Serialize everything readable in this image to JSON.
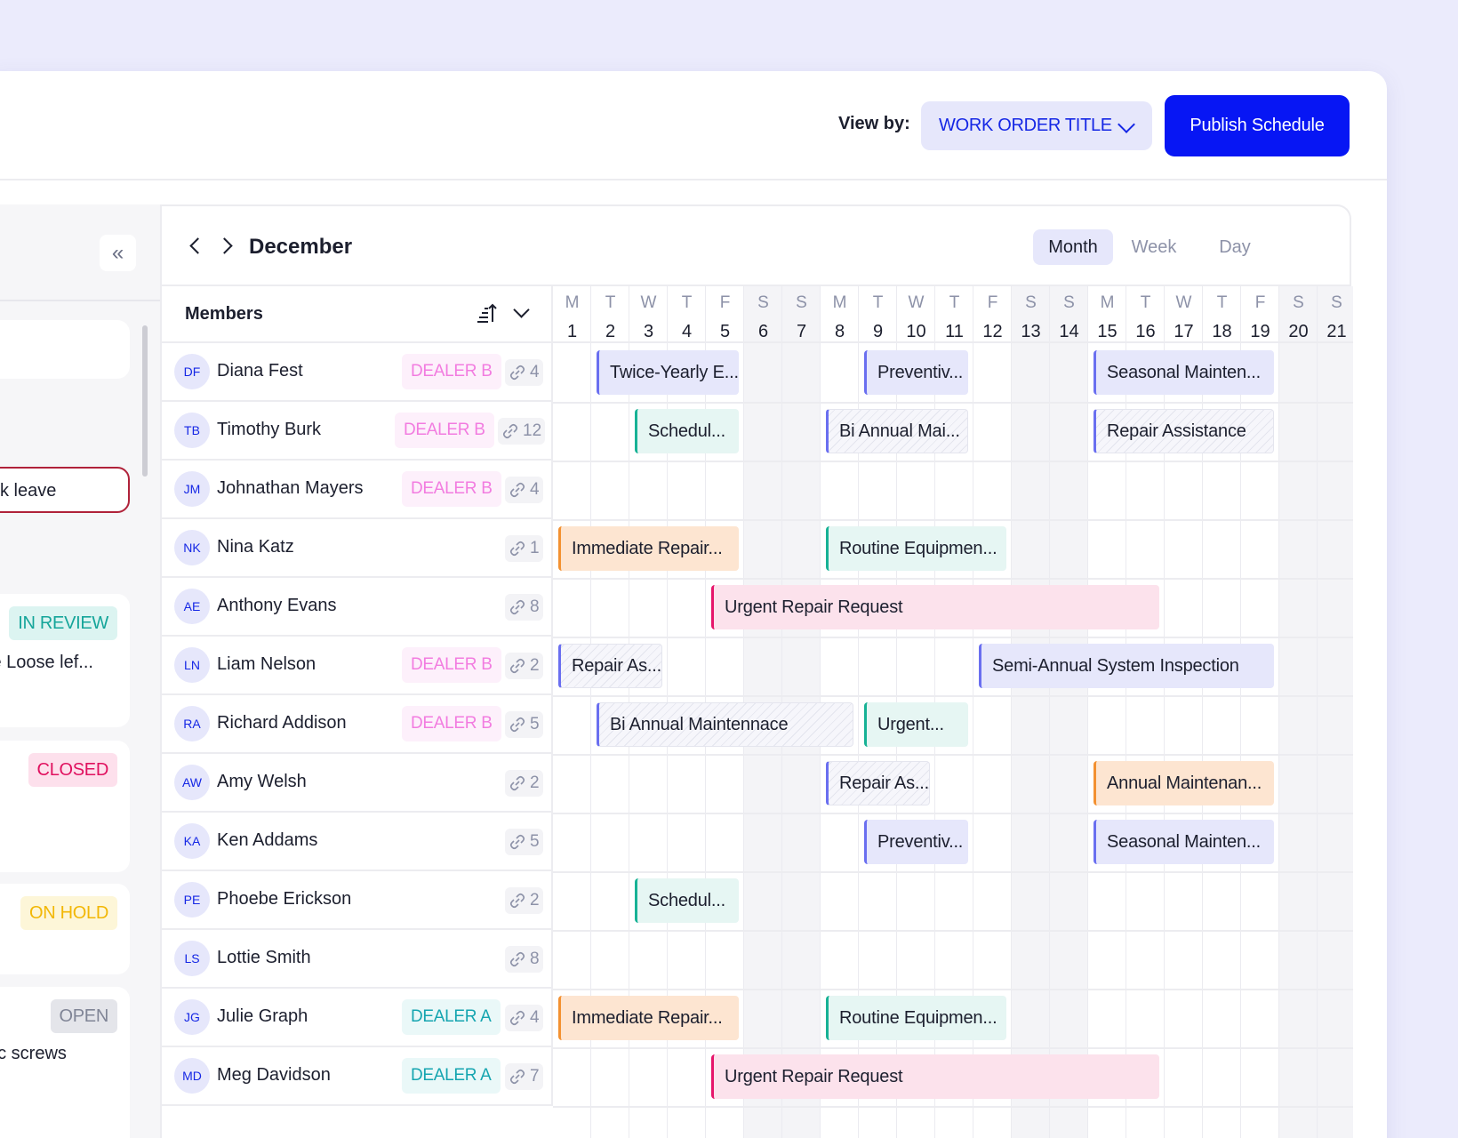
{
  "topbar": {
    "viewby_label": "View by:",
    "viewby_value": "WORK ORDER TITLE",
    "publish_label": "Publish Schedule"
  },
  "left_panel": {
    "collapse_icon": "chevrons-left-icon",
    "input_text": "ck leave",
    "cards": [
      {
        "status": "IN REVIEW",
        "text": "ice Loose lef...",
        "color": "#15a59a"
      },
      {
        "status": "CLOSED",
        "text": "",
        "color": "#e0115f"
      },
      {
        "status": "ON HOLD",
        "text": "",
        "color": "#f2b705"
      },
      {
        "status": "OPEN",
        "text": "atic screws",
        "color": "#808596"
      }
    ]
  },
  "calendar": {
    "month": "December",
    "views": [
      "Month",
      "Week",
      "Day"
    ],
    "active_view": "Month",
    "members_label": "Members",
    "days": [
      {
        "l": "M",
        "n": "1"
      },
      {
        "l": "T",
        "n": "2"
      },
      {
        "l": "W",
        "n": "3"
      },
      {
        "l": "T",
        "n": "4"
      },
      {
        "l": "F",
        "n": "5"
      },
      {
        "l": "S",
        "n": "6"
      },
      {
        "l": "S",
        "n": "7"
      },
      {
        "l": "M",
        "n": "8"
      },
      {
        "l": "T",
        "n": "9"
      },
      {
        "l": "W",
        "n": "10"
      },
      {
        "l": "T",
        "n": "11"
      },
      {
        "l": "F",
        "n": "12"
      },
      {
        "l": "S",
        "n": "13"
      },
      {
        "l": "S",
        "n": "14"
      },
      {
        "l": "M",
        "n": "15"
      },
      {
        "l": "T",
        "n": "16"
      },
      {
        "l": "W",
        "n": "17"
      },
      {
        "l": "T",
        "n": "18"
      },
      {
        "l": "F",
        "n": "19"
      },
      {
        "l": "S",
        "n": "20"
      },
      {
        "l": "S",
        "n": "21"
      }
    ]
  },
  "members": [
    {
      "initials": "DF",
      "name": "Diana Fest",
      "dealer": "DEALER B",
      "count": "4"
    },
    {
      "initials": "TB",
      "name": "Timothy Burk",
      "dealer": "DEALER B",
      "count": "12"
    },
    {
      "initials": "JM",
      "name": "Johnathan Mayers",
      "dealer": "DEALER B",
      "count": "4"
    },
    {
      "initials": "NK",
      "name": "Nina Katz",
      "dealer": "",
      "count": "1"
    },
    {
      "initials": "AE",
      "name": "Anthony Evans",
      "dealer": "",
      "count": "8"
    },
    {
      "initials": "LN",
      "name": "Liam Nelson",
      "dealer": "DEALER B",
      "count": "2"
    },
    {
      "initials": "RA",
      "name": "Richard Addison",
      "dealer": "DEALER B",
      "count": "5"
    },
    {
      "initials": "AW",
      "name": "Amy Welsh",
      "dealer": "",
      "count": "2"
    },
    {
      "initials": "KA",
      "name": "Ken Addams",
      "dealer": "",
      "count": "5"
    },
    {
      "initials": "PE",
      "name": "Phoebe Erickson",
      "dealer": "",
      "count": "2"
    },
    {
      "initials": "LS",
      "name": "Lottie Smith",
      "dealer": "",
      "count": "8"
    },
    {
      "initials": "JG",
      "name": "Julie Graph",
      "dealer": "DEALER A",
      "count": "4"
    },
    {
      "initials": "MD",
      "name": "Meg Davidson",
      "dealer": "DEALER A",
      "count": "7"
    }
  ],
  "events": [
    {
      "row": 0,
      "start": 2,
      "end": 5,
      "title": "Twice-Yearly E...",
      "style": "lav"
    },
    {
      "row": 0,
      "start": 9,
      "end": 11,
      "title": "Preventiv...",
      "style": "lav"
    },
    {
      "row": 0,
      "start": 15,
      "end": 19,
      "title": "Seasonal Mainten...",
      "style": "lav"
    },
    {
      "row": 1,
      "start": 3,
      "end": 5,
      "title": "Schedul...",
      "style": "teal"
    },
    {
      "row": 1,
      "start": 8,
      "end": 11,
      "title": "Bi Annual Mai...",
      "style": "hatch"
    },
    {
      "row": 1,
      "start": 15,
      "end": 19,
      "title": "Repair Assistance",
      "style": "hatch"
    },
    {
      "row": 3,
      "start": 1,
      "end": 5,
      "title": "Immediate Repair...",
      "style": "orange"
    },
    {
      "row": 3,
      "start": 8,
      "end": 12,
      "title": "Routine Equipmen...",
      "style": "teal"
    },
    {
      "row": 4,
      "start": 5,
      "end": 16,
      "title": "Urgent Repair Request",
      "style": "pink"
    },
    {
      "row": 5,
      "start": 1,
      "end": 3,
      "title": "Repair As...",
      "style": "hatch"
    },
    {
      "row": 5,
      "start": 12,
      "end": 19,
      "title": "Semi-Annual System Inspection",
      "style": "lav"
    },
    {
      "row": 6,
      "start": 2,
      "end": 8,
      "title": "Bi Annual Maintennace",
      "style": "hatch"
    },
    {
      "row": 6,
      "start": 9,
      "end": 11,
      "title": "Urgent...",
      "style": "teal"
    },
    {
      "row": 7,
      "start": 8,
      "end": 10,
      "title": "Repair As...",
      "style": "hatch"
    },
    {
      "row": 7,
      "start": 15,
      "end": 19,
      "title": "Annual Maintenan...",
      "style": "orange"
    },
    {
      "row": 8,
      "start": 9,
      "end": 11,
      "title": "Preventiv...",
      "style": "lav"
    },
    {
      "row": 8,
      "start": 15,
      "end": 19,
      "title": "Seasonal Mainten...",
      "style": "lav"
    },
    {
      "row": 9,
      "start": 3,
      "end": 5,
      "title": "Schedul...",
      "style": "teal"
    },
    {
      "row": 11,
      "start": 1,
      "end": 5,
      "title": "Immediate Repair...",
      "style": "orange"
    },
    {
      "row": 11,
      "start": 8,
      "end": 12,
      "title": "Routine Equipmen...",
      "style": "teal"
    },
    {
      "row": 12,
      "start": 5,
      "end": 16,
      "title": "Urgent Repair Request",
      "style": "pink"
    }
  ]
}
